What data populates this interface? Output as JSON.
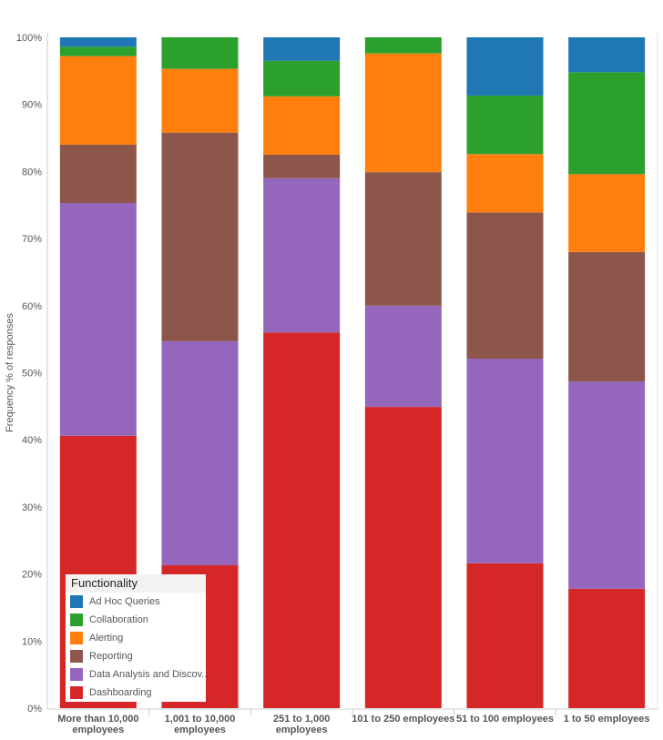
{
  "chart_data": {
    "type": "bar",
    "stacked": true,
    "title": "",
    "xlabel": "",
    "ylabel": "Frequency % of responses",
    "ylim": [
      0,
      100
    ],
    "yticks": [
      "0%",
      "10%",
      "20%",
      "30%",
      "40%",
      "50%",
      "60%",
      "70%",
      "80%",
      "90%",
      "100%"
    ],
    "categories": [
      [
        "More than 10,000",
        "employees"
      ],
      [
        "1,001 to 10,000",
        "employees"
      ],
      [
        "251 to 1,000",
        "employees"
      ],
      [
        "101 to 250 employees"
      ],
      [
        "51 to 100 employees"
      ],
      [
        "1 to 50 employees"
      ]
    ],
    "legend": {
      "title": "Functionality",
      "placement": "bottom-left"
    },
    "series": [
      {
        "name": "Dashboarding",
        "color": "#d62728",
        "values": [
          40.6,
          21.3,
          56.0,
          44.9,
          21.6,
          17.8
        ]
      },
      {
        "name": "Data Analysis and Discov..",
        "color": "#9467bd",
        "values": [
          34.7,
          33.4,
          23.0,
          15.1,
          30.5,
          30.9
        ]
      },
      {
        "name": "Reporting",
        "color": "#8c564b",
        "values": [
          8.7,
          31.1,
          3.5,
          19.9,
          21.8,
          19.3
        ]
      },
      {
        "name": "Alerting",
        "color": "#ff7f0e",
        "values": [
          13.2,
          9.5,
          8.7,
          17.7,
          8.7,
          11.6
        ]
      },
      {
        "name": "Collaboration",
        "color": "#2ca02c",
        "values": [
          1.4,
          4.7,
          5.3,
          2.4,
          8.7,
          15.2
        ]
      },
      {
        "name": "Ad Hoc Queries",
        "color": "#1f77b4",
        "values": [
          1.4,
          0.0,
          3.5,
          0.0,
          8.7,
          5.2
        ]
      }
    ]
  }
}
